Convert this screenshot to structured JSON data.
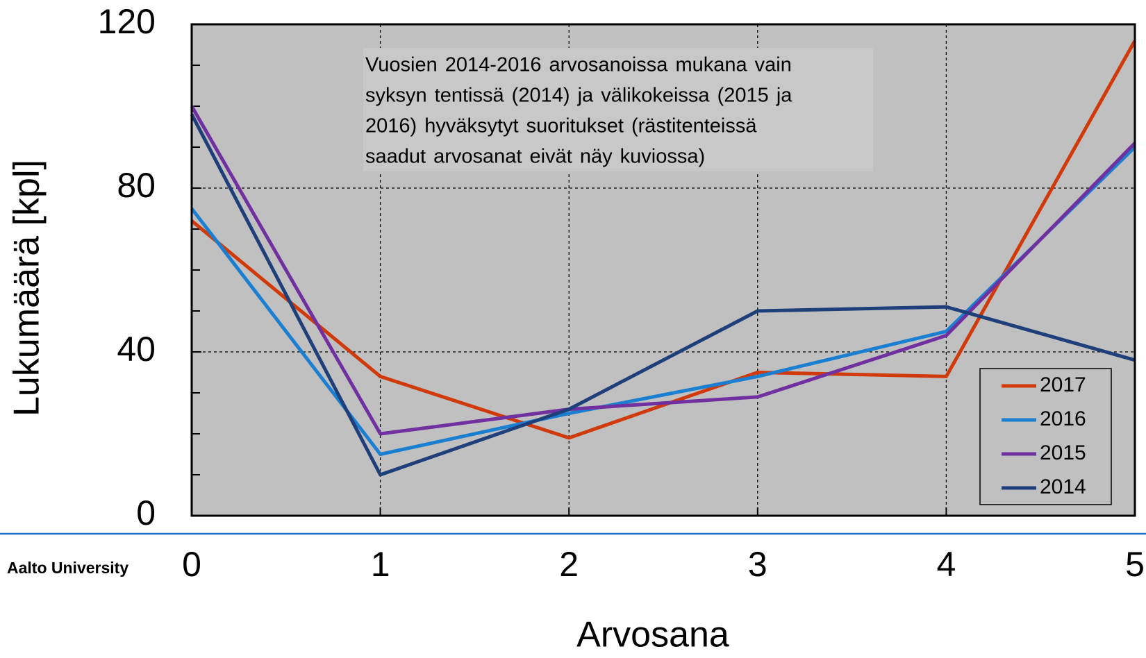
{
  "chart_data": {
    "type": "line",
    "x_label": "Arvosana",
    "y_label": "Lukumäärä  [kpl]",
    "annotation": [
      "Vuosien 2014-2016 arvosanoissa mukana vain",
      "syksyn tentissä (2014) ja välikokeissa (2015 ja",
      "2016) hyväksytyt suoritukset (rästitenteissä",
      "saadut arvosanat eivät näy kuviossa)"
    ],
    "footer": "Aalto University",
    "x": [
      0,
      1,
      2,
      3,
      4,
      5
    ],
    "xlim": [
      0,
      5
    ],
    "xticks": [
      0,
      1,
      2,
      3,
      4,
      5
    ],
    "ylim": [
      0,
      120
    ],
    "yticks": [
      0,
      40,
      80,
      120
    ],
    "minor_yticks": [
      10,
      20,
      30,
      50,
      60,
      70,
      90,
      100,
      110
    ],
    "grid": true,
    "legend": "lower right",
    "series": [
      {
        "name": "2017",
        "color": "#d03a0a",
        "values": [
          72,
          34,
          19,
          35,
          34,
          116
        ]
      },
      {
        "name": "2016",
        "color": "#1a7fd0",
        "values": [
          75,
          15,
          25,
          34,
          45,
          90
        ]
      },
      {
        "name": "2015",
        "color": "#7030a0",
        "values": [
          100,
          20,
          26,
          29,
          44,
          91
        ]
      },
      {
        "name": "2014",
        "color": "#1f3f7a",
        "values": [
          98,
          10,
          26,
          50,
          51,
          38
        ]
      }
    ]
  }
}
